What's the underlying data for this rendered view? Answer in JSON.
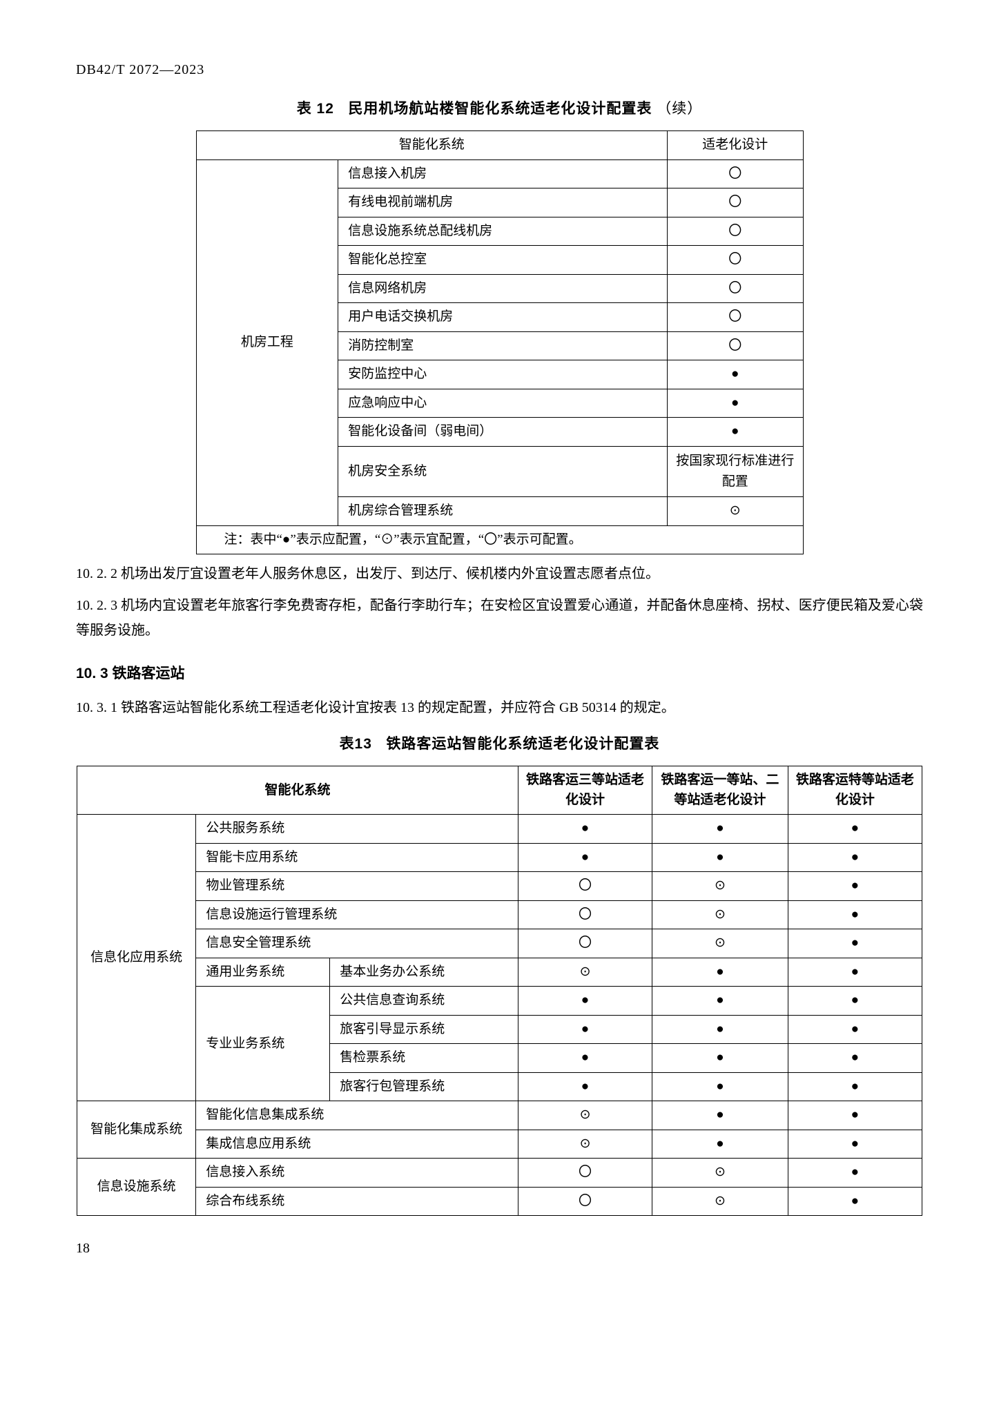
{
  "doc_code": "DB42/T 2072—2023",
  "table12": {
    "title_prefix": "表 12",
    "title_main": "民用机场航站楼智能化系统适老化设计配置表",
    "title_suffix": "（续）",
    "header_system": "智能化系统",
    "header_design": "适老化设计",
    "group_label": "机房工程",
    "rows": [
      {
        "name": "信息接入机房",
        "mark": "〇"
      },
      {
        "name": "有线电视前端机房",
        "mark": "〇"
      },
      {
        "name": "信息设施系统总配线机房",
        "mark": "〇"
      },
      {
        "name": "智能化总控室",
        "mark": "〇"
      },
      {
        "name": "信息网络机房",
        "mark": "〇"
      },
      {
        "name": "用户电话交换机房",
        "mark": "〇"
      },
      {
        "name": "消防控制室",
        "mark": "〇"
      },
      {
        "name": "安防监控中心",
        "mark": "●"
      },
      {
        "name": "应急响应中心",
        "mark": "●"
      },
      {
        "name": "智能化设备间（弱电间）",
        "mark": "●"
      },
      {
        "name": "机房安全系统",
        "mark": "按国家现行标准进行配置"
      },
      {
        "name": "机房综合管理系统",
        "mark": "⊙"
      }
    ],
    "note": "注：表中“●”表示应配置，“⊙”表示宜配置，“〇”表示可配置。"
  },
  "para_10_2_2": "10. 2. 2  机场出发厅宜设置老年人服务休息区，出发厅、到达厅、候机楼内外宜设置志愿者点位。",
  "para_10_2_3": "10. 2. 3  机场内宜设置老年旅客行李免费寄存柜，配备行李助行车；在安检区宜设置爱心通道，并配备休息座椅、拐杖、医疗便民箱及爱心袋等服务设施。",
  "section_10_3": "10. 3  铁路客运站",
  "para_10_3_1": "10. 3. 1  铁路客运站智能化系统工程适老化设计宜按表 13 的规定配置，并应符合 GB 50314 的规定。",
  "table13": {
    "title_prefix": "表13",
    "title_main": "铁路客运站智能化系统适老化设计配置表",
    "header_system": "智能化系统",
    "header_c3": "铁路客运三等站适老化设计",
    "header_c12": "铁路客运一等站、二等站适老化设计",
    "header_cs": "铁路客运特等站适老化设计",
    "groups": [
      {
        "label": "信息化应用系统",
        "rows": [
          {
            "sub": "公共服务系统",
            "marks": [
              "●",
              "●",
              "●"
            ]
          },
          {
            "sub": "智能卡应用系统",
            "marks": [
              "●",
              "●",
              "●"
            ]
          },
          {
            "sub": "物业管理系统",
            "marks": [
              "〇",
              "⊙",
              "●"
            ]
          },
          {
            "sub": "信息设施运行管理系统",
            "marks": [
              "〇",
              "⊙",
              "●"
            ]
          },
          {
            "sub": "信息安全管理系统",
            "marks": [
              "〇",
              "⊙",
              "●"
            ]
          },
          {
            "sub": "通用业务系统",
            "sub2": "基本业务办公系统",
            "marks": [
              "⊙",
              "●",
              "●"
            ]
          },
          {
            "sub": "专业业务系统",
            "sub2_rows": [
              {
                "label": "公共信息查询系统",
                "marks": [
                  "●",
                  "●",
                  "●"
                ]
              },
              {
                "label": "旅客引导显示系统",
                "marks": [
                  "●",
                  "●",
                  "●"
                ]
              },
              {
                "label": "售检票系统",
                "marks": [
                  "●",
                  "●",
                  "●"
                ]
              },
              {
                "label": "旅客行包管理系统",
                "marks": [
                  "●",
                  "●",
                  "●"
                ]
              }
            ]
          }
        ]
      },
      {
        "label": "智能化集成系统",
        "rows": [
          {
            "sub": "智能化信息集成系统",
            "marks": [
              "⊙",
              "●",
              "●"
            ]
          },
          {
            "sub": "集成信息应用系统",
            "marks": [
              "⊙",
              "●",
              "●"
            ]
          }
        ]
      },
      {
        "label": "信息设施系统",
        "rows": [
          {
            "sub": "信息接入系统",
            "marks": [
              "〇",
              "⊙",
              "●"
            ]
          },
          {
            "sub": "综合布线系统",
            "marks": [
              "〇",
              "⊙",
              "●"
            ]
          }
        ]
      }
    ]
  },
  "page_number": "18"
}
